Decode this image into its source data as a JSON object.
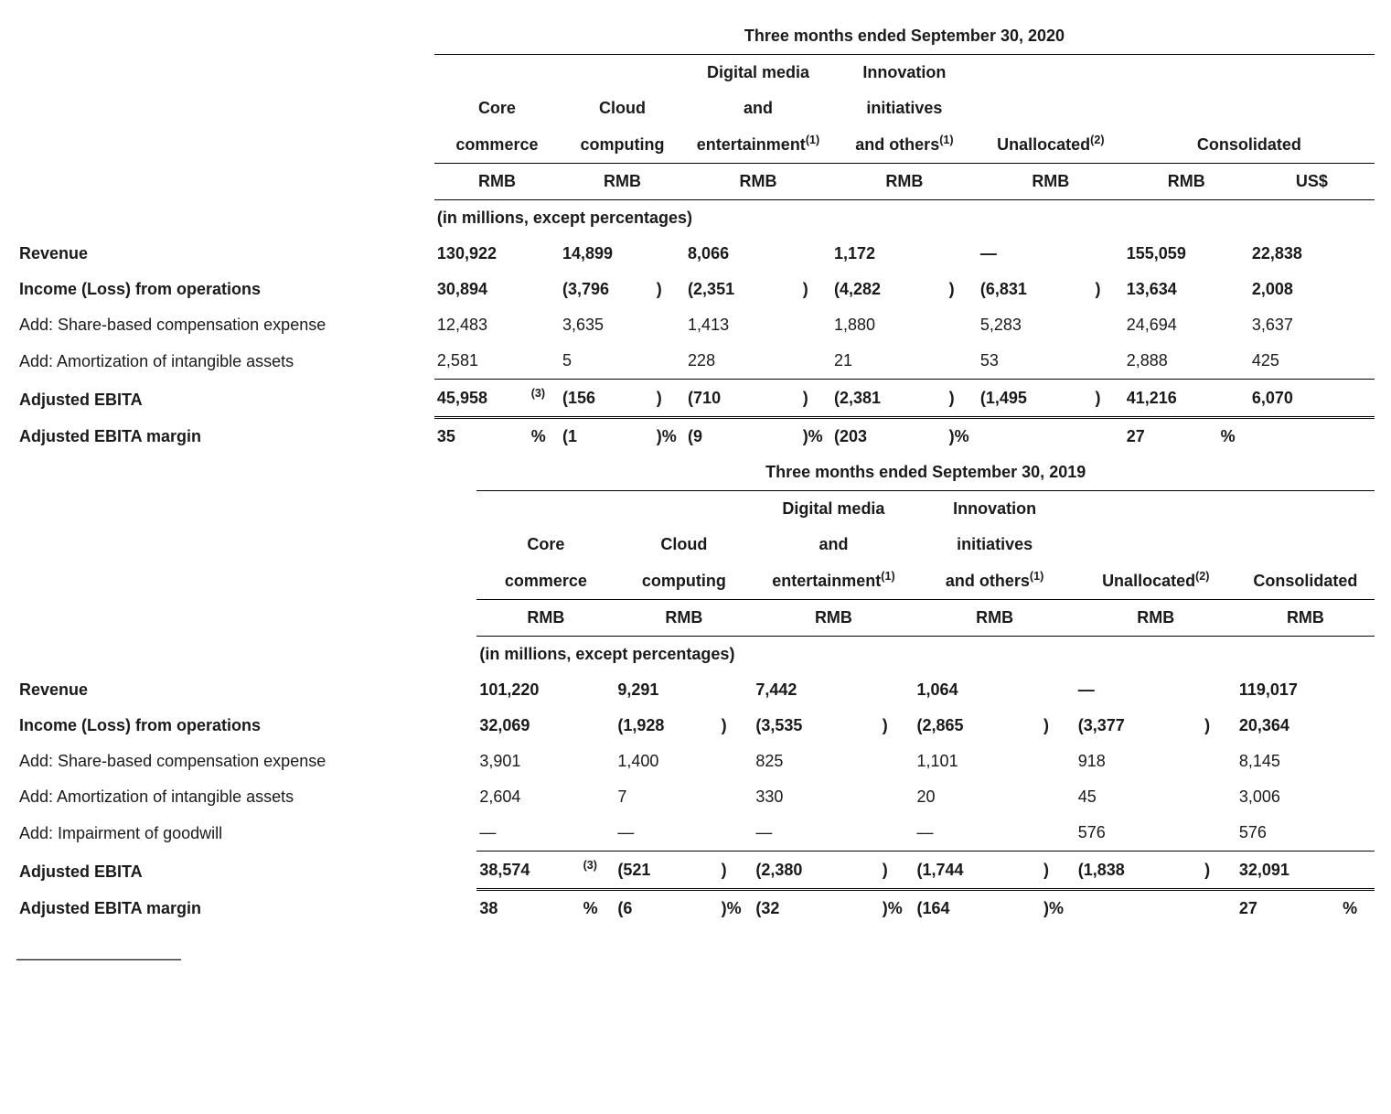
{
  "periods": [
    {
      "title": "Three months ended September 30, 2020",
      "columns": {
        "core": {
          "l1": "Core",
          "l2": "commerce",
          "unit": "RMB"
        },
        "cloud": {
          "l1": "Cloud",
          "l2": "computing",
          "unit": "RMB"
        },
        "digital": {
          "l0": "Digital media",
          "l1": "and",
          "l2": "entertainment",
          "sup": "(1)",
          "unit": "RMB"
        },
        "innov": {
          "l0": "Innovation",
          "l1": "initiatives",
          "l2": "and others",
          "sup": "(1)",
          "unit": "RMB"
        },
        "unalloc": {
          "l2": "Unallocated",
          "sup": "(2)",
          "unit": "RMB"
        },
        "cons": {
          "l2": "Consolidated",
          "unit_rmb": "RMB",
          "unit_usd": "US$"
        }
      },
      "note": "(in millions, except percentages)",
      "rows": [
        {
          "label": "Revenue",
          "bold": true,
          "cells": {
            "core": "130,922",
            "cloud": "14,899",
            "digital": "8,066",
            "innov": "1,172",
            "unalloc": "—",
            "cons_rmb": "155,059",
            "cons_usd": "22,838"
          }
        },
        {
          "label": "Income (Loss) from operations",
          "bold": true,
          "cells": {
            "core": "30,894",
            "cloud": "(3,796",
            "cloud_p": ")",
            "digital": "(2,351",
            "digital_p": ")",
            "innov": "(4,282",
            "innov_p": ")",
            "unalloc": "(6,831",
            "unalloc_p": ")",
            "cons_rmb": "13,634",
            "cons_usd": "2,008"
          }
        },
        {
          "label": "Add: Share-based compensation expense",
          "bold": false,
          "cells": {
            "core": "12,483",
            "cloud": "3,635",
            "digital": "1,413",
            "innov": "1,880",
            "unalloc": "5,283",
            "cons_rmb": "24,694",
            "cons_usd": "3,637"
          }
        },
        {
          "label": "Add: Amortization of intangible assets",
          "bold": false,
          "cells": {
            "core": "2,581",
            "cloud": "5",
            "digital": "228",
            "innov": "21",
            "unalloc": "53",
            "cons_rmb": "2,888",
            "cons_usd": "425"
          }
        },
        {
          "label": "Adjusted EBITA",
          "bold": true,
          "rule": "totals",
          "sup_after_core": "(3)",
          "cells": {
            "core": "45,958",
            "cloud": "(156",
            "cloud_p": ")",
            "digital": "(710",
            "digital_p": ")",
            "innov": "(2,381",
            "innov_p": ")",
            "unalloc": "(1,495",
            "unalloc_p": ")",
            "cons_rmb": "41,216",
            "cons_usd": "6,070"
          }
        },
        {
          "label": "Adjusted EBITA margin",
          "bold": true,
          "rule": "margin",
          "cells": {
            "core": "35",
            "core_p": "%",
            "cloud": "(1",
            "cloud_p": ")%",
            "digital": "(9",
            "digital_p": ")%",
            "innov": "(203",
            "innov_p": ")%",
            "unalloc": "",
            "cons_rmb": "27",
            "cons_rmb_p": "%",
            "cons_usd": ""
          }
        }
      ]
    },
    {
      "title": "Three months ended September 30, 2019",
      "columns": {
        "core": {
          "l1": "Core",
          "l2": "commerce",
          "unit": "RMB"
        },
        "cloud": {
          "l1": "Cloud",
          "l2": "computing",
          "unit": "RMB"
        },
        "digital": {
          "l0": "Digital media",
          "l1": "and",
          "l2": "entertainment",
          "sup": "(1)",
          "unit": "RMB"
        },
        "innov": {
          "l0": "Innovation",
          "l1": "initiatives",
          "l2": "and others",
          "sup": "(1)",
          "unit": "RMB"
        },
        "unalloc": {
          "l2": "Unallocated",
          "sup": "(2)",
          "unit": "RMB"
        },
        "cons": {
          "l2": "Consolidated",
          "unit_rmb": "RMB"
        }
      },
      "note": "(in millions, except percentages)",
      "rows": [
        {
          "label": "Revenue",
          "bold": true,
          "cells": {
            "core": "101,220",
            "cloud": "9,291",
            "digital": "7,442",
            "innov": "1,064",
            "unalloc": "—",
            "cons_rmb": "119,017"
          }
        },
        {
          "label": "Income (Loss) from operations",
          "bold": true,
          "cells": {
            "core": "32,069",
            "cloud": "(1,928",
            "cloud_p": ")",
            "digital": "(3,535",
            "digital_p": ")",
            "innov": "(2,865",
            "innov_p": ")",
            "unalloc": "(3,377",
            "unalloc_p": ")",
            "cons_rmb": "20,364"
          }
        },
        {
          "label": "Add: Share-based compensation expense",
          "bold": false,
          "cells": {
            "core": "3,901",
            "cloud": "1,400",
            "digital": "825",
            "innov": "1,101",
            "unalloc": "918",
            "cons_rmb": "8,145"
          }
        },
        {
          "label": "Add: Amortization of intangible assets",
          "bold": false,
          "cells": {
            "core": "2,604",
            "cloud": "7",
            "digital": "330",
            "innov": "20",
            "unalloc": "45",
            "cons_rmb": "3,006"
          }
        },
        {
          "label": "Add: Impairment of goodwill",
          "bold": false,
          "cells": {
            "core": "—",
            "cloud": "—",
            "digital": "—",
            "innov": "—",
            "unalloc": "576",
            "cons_rmb": "576"
          }
        },
        {
          "label": "Adjusted EBITA",
          "bold": true,
          "rule": "totals",
          "sup_after_core": "(3)",
          "cells": {
            "core": "38,574",
            "cloud": "(521",
            "cloud_p": ")",
            "digital": "(2,380",
            "digital_p": ")",
            "innov": "(1,744",
            "innov_p": ")",
            "unalloc": "(1,838",
            "unalloc_p": ")",
            "cons_rmb": "32,091"
          }
        },
        {
          "label": "Adjusted EBITA margin",
          "bold": true,
          "rule": "margin",
          "cells": {
            "core": "38",
            "core_p": "%",
            "cloud": "(6",
            "cloud_p": ")%",
            "digital": "(32",
            "digital_p": ")%",
            "innov": "(164",
            "innov_p": ")%",
            "unalloc": "",
            "cons_rmb": "27",
            "cons_rmb_p": "%"
          }
        }
      ]
    }
  ],
  "footnote_dashes": "——————————"
}
